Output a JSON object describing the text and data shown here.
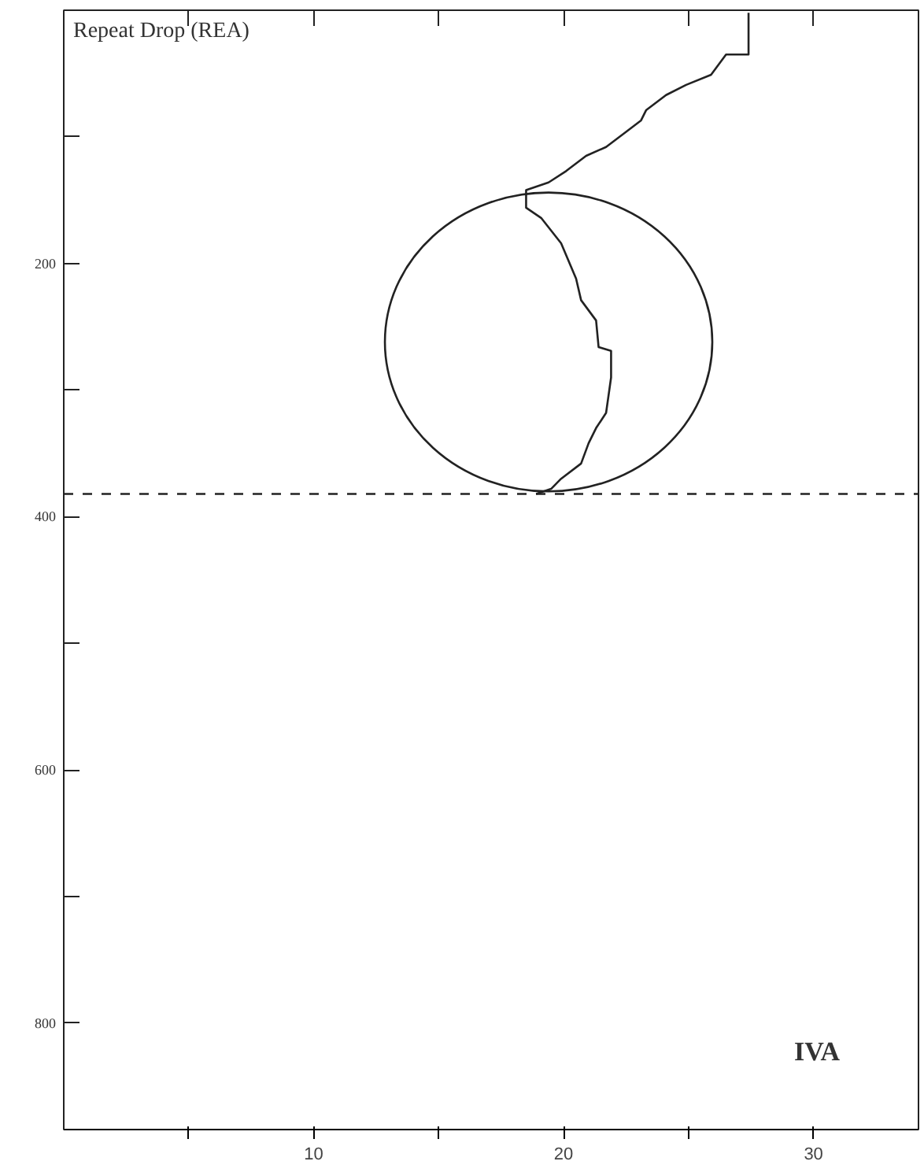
{
  "chart_data": {
    "type": "line",
    "ylabel": "Repeat Drop (REA)",
    "xlim": [
      0,
      34.2
    ],
    "ylim": [
      884,
      0
    ],
    "xticks": [
      {
        "value": 5,
        "label": null
      },
      10,
      {
        "value": 15,
        "label": null
      },
      20,
      {
        "value": 25,
        "label": null
      },
      30
    ],
    "yticks": [
      {
        "value": 100,
        "label": null
      },
      200,
      {
        "value": 300,
        "label": null
      },
      400,
      {
        "value": 500,
        "label": null
      },
      600,
      {
        "value": 700,
        "label": null
      },
      800
    ],
    "grid": false,
    "marker": "none",
    "line_style": "solid",
    "ref_lines": [
      {
        "axis": "y",
        "value": 382,
        "label": null,
        "line_style": "dashed",
        "color": "#222222"
      }
    ],
    "annotations": [
      "IVA"
    ],
    "series": [
      {
        "color": "#222222",
        "x": [
          27.4,
          27.4,
          26.5,
          25.9,
          24.9,
          24.1,
          23.3,
          23.1,
          22.5,
          21.7,
          20.9,
          20.1,
          19.4,
          18.5,
          18.5,
          18.5,
          19.1,
          19.9,
          20.5,
          20.7,
          21.3,
          21.4,
          21.9,
          21.9,
          21.7,
          21.3,
          21.0,
          20.7,
          19.9,
          19.5,
          18.9
        ],
        "values": [
          2,
          35,
          35,
          51,
          59,
          67,
          79,
          87,
          96,
          108,
          115,
          127,
          136,
          142,
          146,
          156,
          164,
          184,
          212,
          229,
          245,
          266,
          269,
          290,
          318,
          330,
          342,
          358,
          370,
          378,
          382
        ]
      }
    ]
  }
}
